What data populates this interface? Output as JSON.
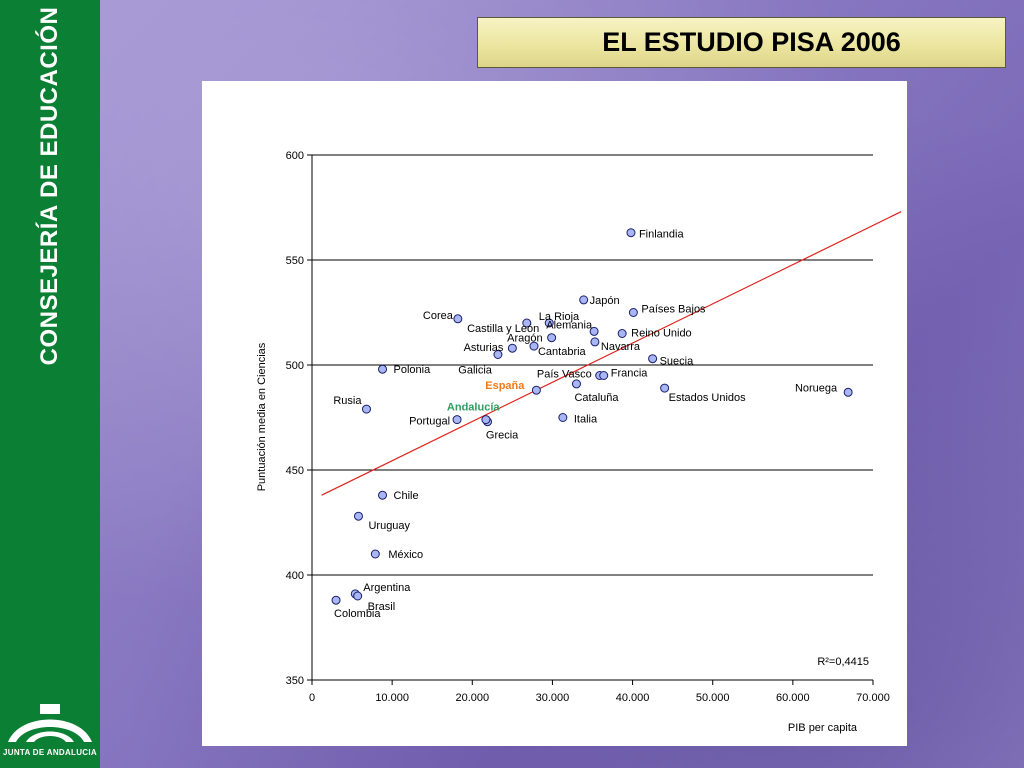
{
  "header": {
    "title": "EL ESTUDIO PISA 2006"
  },
  "sidebar": {
    "title": "CONSEJERÍA DE EDUCACIÓN",
    "logo_caption": "JUNTA DE ANDALUCIA"
  },
  "colors": {
    "sidebar_green": "#0b7f33",
    "title_box": "#ece6a0",
    "point_fill": "#a9b6f4",
    "trend_line": "#e0201a",
    "espana_label": "#f07a1a",
    "andalucia_label": "#2e9e5e"
  },
  "chart_data": {
    "type": "scatter",
    "xlabel": "PIB per capita",
    "ylabel": "Puntuación media en Ciencias",
    "xlim": [
      0,
      70000
    ],
    "ylim": [
      350,
      600
    ],
    "x_ticks": [
      "0",
      "10.000",
      "20.000",
      "30.000",
      "40.000",
      "50.000",
      "60.000",
      "70.000"
    ],
    "y_ticks": [
      "350",
      "400",
      "450",
      "500",
      "550",
      "600"
    ],
    "grid": "horizontal",
    "r2_label": "R²=0,4415",
    "trendline": {
      "x": [
        1200,
        73500
      ],
      "y": [
        438,
        573
      ]
    },
    "points": [
      {
        "name": "Finlandia",
        "x": 39800,
        "y": 563
      },
      {
        "name": "Japón",
        "x": 33900,
        "y": 531
      },
      {
        "name": "Países Bajos",
        "x": 40100,
        "y": 525
      },
      {
        "name": "Corea",
        "x": 18200,
        "y": 522
      },
      {
        "name": "La Rioja",
        "x": 26800,
        "y": 520
      },
      {
        "name": "Castilla y León",
        "x": 29600,
        "y": 520
      },
      {
        "name": "Alemania",
        "x": 35200,
        "y": 516
      },
      {
        "name": "Reino Unido",
        "x": 38700,
        "y": 515
      },
      {
        "name": "Aragón",
        "x": 29900,
        "y": 513
      },
      {
        "name": "Asturias",
        "x": 25000,
        "y": 508
      },
      {
        "name": "Navarra",
        "x": 35300,
        "y": 511
      },
      {
        "name": "Cantabria",
        "x": 27700,
        "y": 509
      },
      {
        "name": "Suecia",
        "x": 42500,
        "y": 503
      },
      {
        "name": "Polonia",
        "x": 8800,
        "y": 498
      },
      {
        "name": "Galicia",
        "x": 23200,
        "y": 505
      },
      {
        "name": "País Vasco",
        "x": 35900,
        "y": 495
      },
      {
        "name": "Francia",
        "x": 36400,
        "y": 495
      },
      {
        "name": "España",
        "x": 28000,
        "y": 488
      },
      {
        "name": "Cataluña",
        "x": 33000,
        "y": 491
      },
      {
        "name": "Estados Unidos",
        "x": 44000,
        "y": 489
      },
      {
        "name": "Noruega",
        "x": 66900,
        "y": 487
      },
      {
        "name": "Rusia",
        "x": 6800,
        "y": 479
      },
      {
        "name": "Andalucía",
        "x": 21900,
        "y": 473
      },
      {
        "name": "Portugal",
        "x": 18100,
        "y": 474
      },
      {
        "name": "Grecia",
        "x": 21700,
        "y": 474
      },
      {
        "name": "Italia",
        "x": 31300,
        "y": 475
      },
      {
        "name": "Chile",
        "x": 8800,
        "y": 438
      },
      {
        "name": "Uruguay",
        "x": 5800,
        "y": 428
      },
      {
        "name": "México",
        "x": 7900,
        "y": 410
      },
      {
        "name": "Argentina",
        "x": 5400,
        "y": 391
      },
      {
        "name": "Brasil",
        "x": 5700,
        "y": 390
      },
      {
        "name": "Colombia",
        "x": 3000,
        "y": 388
      }
    ]
  }
}
